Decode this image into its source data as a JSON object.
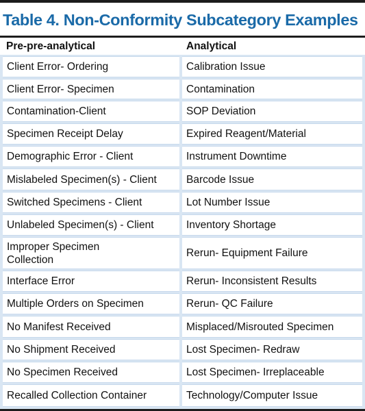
{
  "table": {
    "title": "Table 4. Non-Conformity Subcategory Examples",
    "headers": [
      "Pre-pre-analytical",
      "Analytical"
    ],
    "rows": [
      [
        "Client Error- Ordering",
        "Calibration Issue"
      ],
      [
        "Client Error- Specimen",
        "Contamination"
      ],
      [
        "Contamination-Client",
        "SOP Deviation"
      ],
      [
        "Specimen Receipt Delay",
        "Expired Reagent/Material"
      ],
      [
        "Demographic Error - Client",
        "Instrument Downtime"
      ],
      [
        "Mislabeled Specimen(s) - Client",
        "Barcode Issue"
      ],
      [
        "Switched Specimens - Client",
        "Lot Number Issue"
      ],
      [
        "Unlabeled Specimen(s) - Client",
        "Inventory Shortage"
      ],
      [
        "Improper Specimen Collection",
        "Rerun- Equipment Failure"
      ],
      [
        "Interface Error",
        "Rerun- Inconsistent Results"
      ],
      [
        "Multiple Orders on Specimen",
        "Rerun- QC Failure"
      ],
      [
        "No Manifest Received",
        "Misplaced/Misrouted Specimen"
      ],
      [
        "No Shipment Received",
        "Lost Specimen- Redraw"
      ],
      [
        "No Specimen Received",
        "Lost Specimen- Irreplaceable"
      ],
      [
        "Recalled Collection Container",
        "Technology/Computer Issue"
      ]
    ]
  }
}
